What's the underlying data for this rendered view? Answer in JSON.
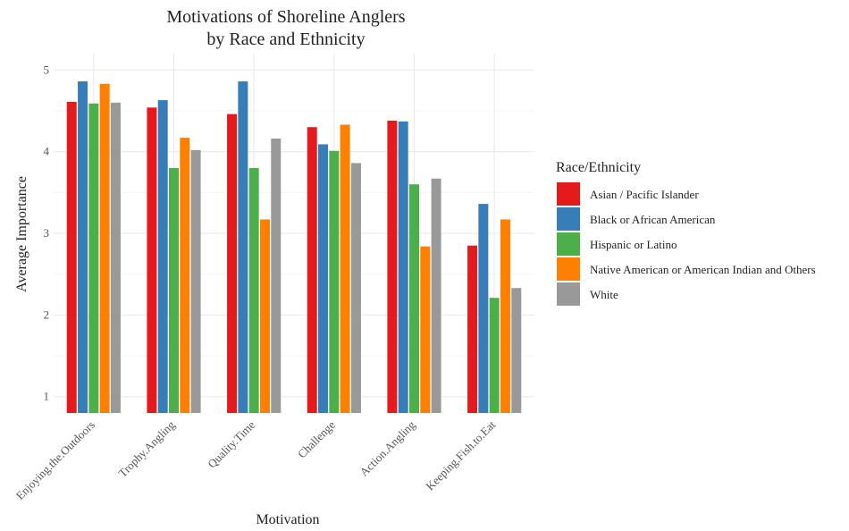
{
  "chart_data": {
    "type": "bar",
    "title_lines": [
      "Motivations of Shoreline Anglers",
      "by Race and Ethnicity"
    ],
    "xlabel": "Motivation",
    "ylabel": "Average Importance",
    "categories": [
      "Enjoying.the.Outdoors",
      "Trophy.Angling",
      "Quality.Time",
      "Challenge",
      "Action.Angling",
      "Keeping.Fish.to.Eat"
    ],
    "ylim": [
      0.8,
      5.2
    ],
    "yticks": [
      "1",
      "2",
      "3",
      "4",
      "5"
    ],
    "grid": true,
    "legend": {
      "title": "Race/Ethnicity",
      "position": "right"
    },
    "series": [
      {
        "name": "Asian / Pacific Islander",
        "color": "#e41a1c",
        "values": [
          4.61,
          4.54,
          4.46,
          4.3,
          4.38,
          2.85
        ]
      },
      {
        "name": "Black or African American",
        "color": "#377eb8",
        "values": [
          4.86,
          4.63,
          4.86,
          4.09,
          4.37,
          3.36
        ]
      },
      {
        "name": "Hispanic or Latino",
        "color": "#4daf4a",
        "values": [
          4.59,
          3.8,
          3.8,
          4.01,
          3.6,
          2.21
        ]
      },
      {
        "name": "Native American or American Indian and Others",
        "color": "#ff7f00",
        "values": [
          4.83,
          4.17,
          3.17,
          4.33,
          2.84,
          3.17
        ]
      },
      {
        "name": "White",
        "color": "#999999",
        "values": [
          4.6,
          4.02,
          4.16,
          3.86,
          3.67,
          2.33
        ]
      }
    ]
  }
}
